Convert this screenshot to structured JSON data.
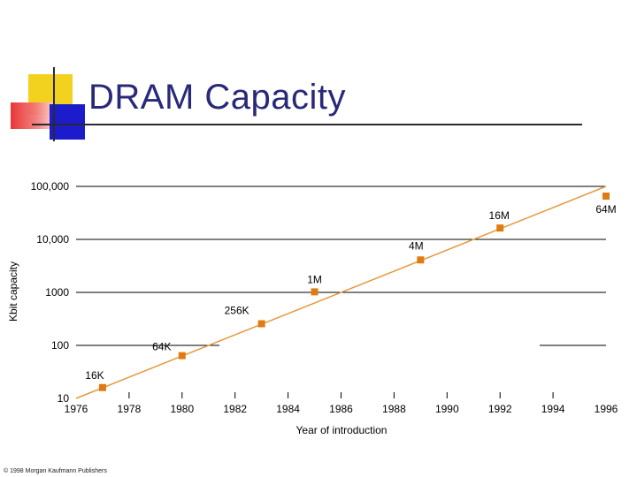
{
  "slide": {
    "title": "DRAM Capacity",
    "copyright": "© 1998 Morgan Kaufmann Publishers"
  },
  "chart_data": {
    "type": "line",
    "title": "",
    "xlabel": "Year of introduction",
    "ylabel": "Kbit capacity",
    "yscale": "log",
    "xlim": [
      1976,
      1996
    ],
    "ylim": [
      10,
      100000
    ],
    "x_ticks": [
      1976,
      1978,
      1980,
      1982,
      1984,
      1986,
      1988,
      1990,
      1992,
      1994,
      1996
    ],
    "x_tick_labels": [
      "1976",
      "1978",
      "1980",
      "1982",
      "1984",
      "1986",
      "1988",
      "1990",
      "1992",
      "1994",
      "1996"
    ],
    "y_ticks": [
      10,
      100,
      1000,
      10000,
      100000
    ],
    "y_tick_labels": [
      "10",
      "100",
      "1000",
      "10,000",
      "100,000"
    ],
    "gridlines": "horizontal",
    "series": [
      {
        "points": [
          {
            "x": 1977,
            "y": 16,
            "label": "16K"
          },
          {
            "x": 1980,
            "y": 64,
            "label": "64K"
          },
          {
            "x": 1983,
            "y": 256,
            "label": "256K"
          },
          {
            "x": 1985,
            "y": 1024,
            "label": "1M"
          },
          {
            "x": 1989,
            "y": 4096,
            "label": "4M"
          },
          {
            "x": 1992,
            "y": 16384,
            "label": "16M"
          },
          {
            "x": 1996,
            "y": 65536,
            "label": "64M"
          }
        ]
      }
    ],
    "trend_line": {
      "x": [
        1976,
        1996
      ],
      "y": [
        10,
        100000
      ]
    },
    "colors": {
      "marker": "#e07b10",
      "line": "#e39a3c",
      "grid": "#000000",
      "text": "#000000"
    }
  }
}
